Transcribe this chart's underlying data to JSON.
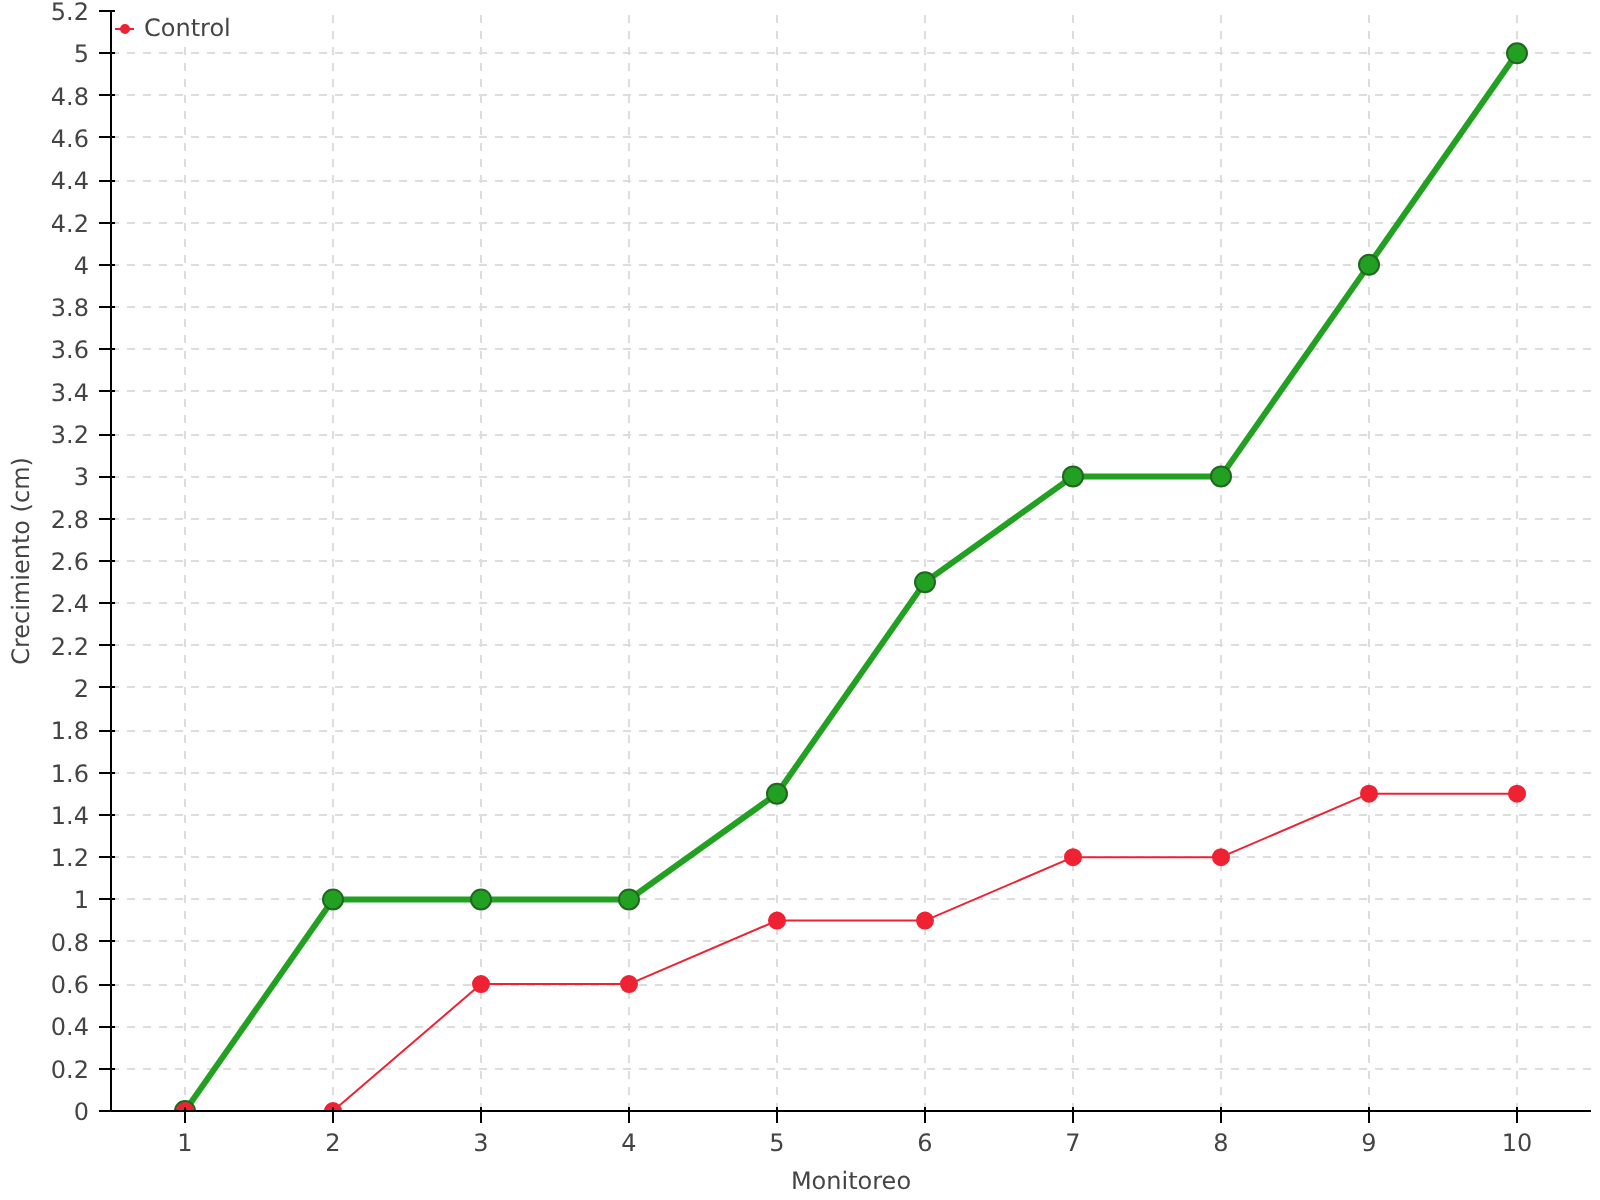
{
  "chart_data": {
    "type": "line",
    "xlabel": "Monitoreo",
    "ylabel": "Crecimiento (cm)",
    "x": [
      1,
      2,
      3,
      4,
      5,
      6,
      7,
      8,
      9,
      10
    ],
    "series": [
      {
        "color": "#22a022",
        "values": [
          0,
          1,
          1,
          1,
          1.5,
          2.5,
          3,
          3,
          4,
          5
        ]
      },
      {
        "name": "Control",
        "color": "#ee2233",
        "values": [
          0,
          0,
          0.6,
          0.6,
          0.9,
          0.9,
          1.2,
          1.2,
          1.5,
          1.5
        ]
      }
    ],
    "xlim": [
      0.5,
      10.5
    ],
    "xticks": [
      1,
      2,
      3,
      4,
      5,
      6,
      7,
      8,
      9,
      10
    ],
    "ylim": [
      0,
      5.2
    ],
    "yticks": [
      0,
      0.2,
      0.4,
      0.6,
      0.8,
      1,
      1.2,
      1.4,
      1.6,
      1.8,
      2,
      2.2,
      2.4,
      2.6,
      2.8,
      3,
      3.2,
      3.4,
      3.6,
      3.8,
      4,
      4.2,
      4.4,
      4.6,
      4.8,
      5,
      5.2
    ],
    "grid": true,
    "legend": "top left",
    "marker": "circle",
    "line_style": "solid"
  }
}
